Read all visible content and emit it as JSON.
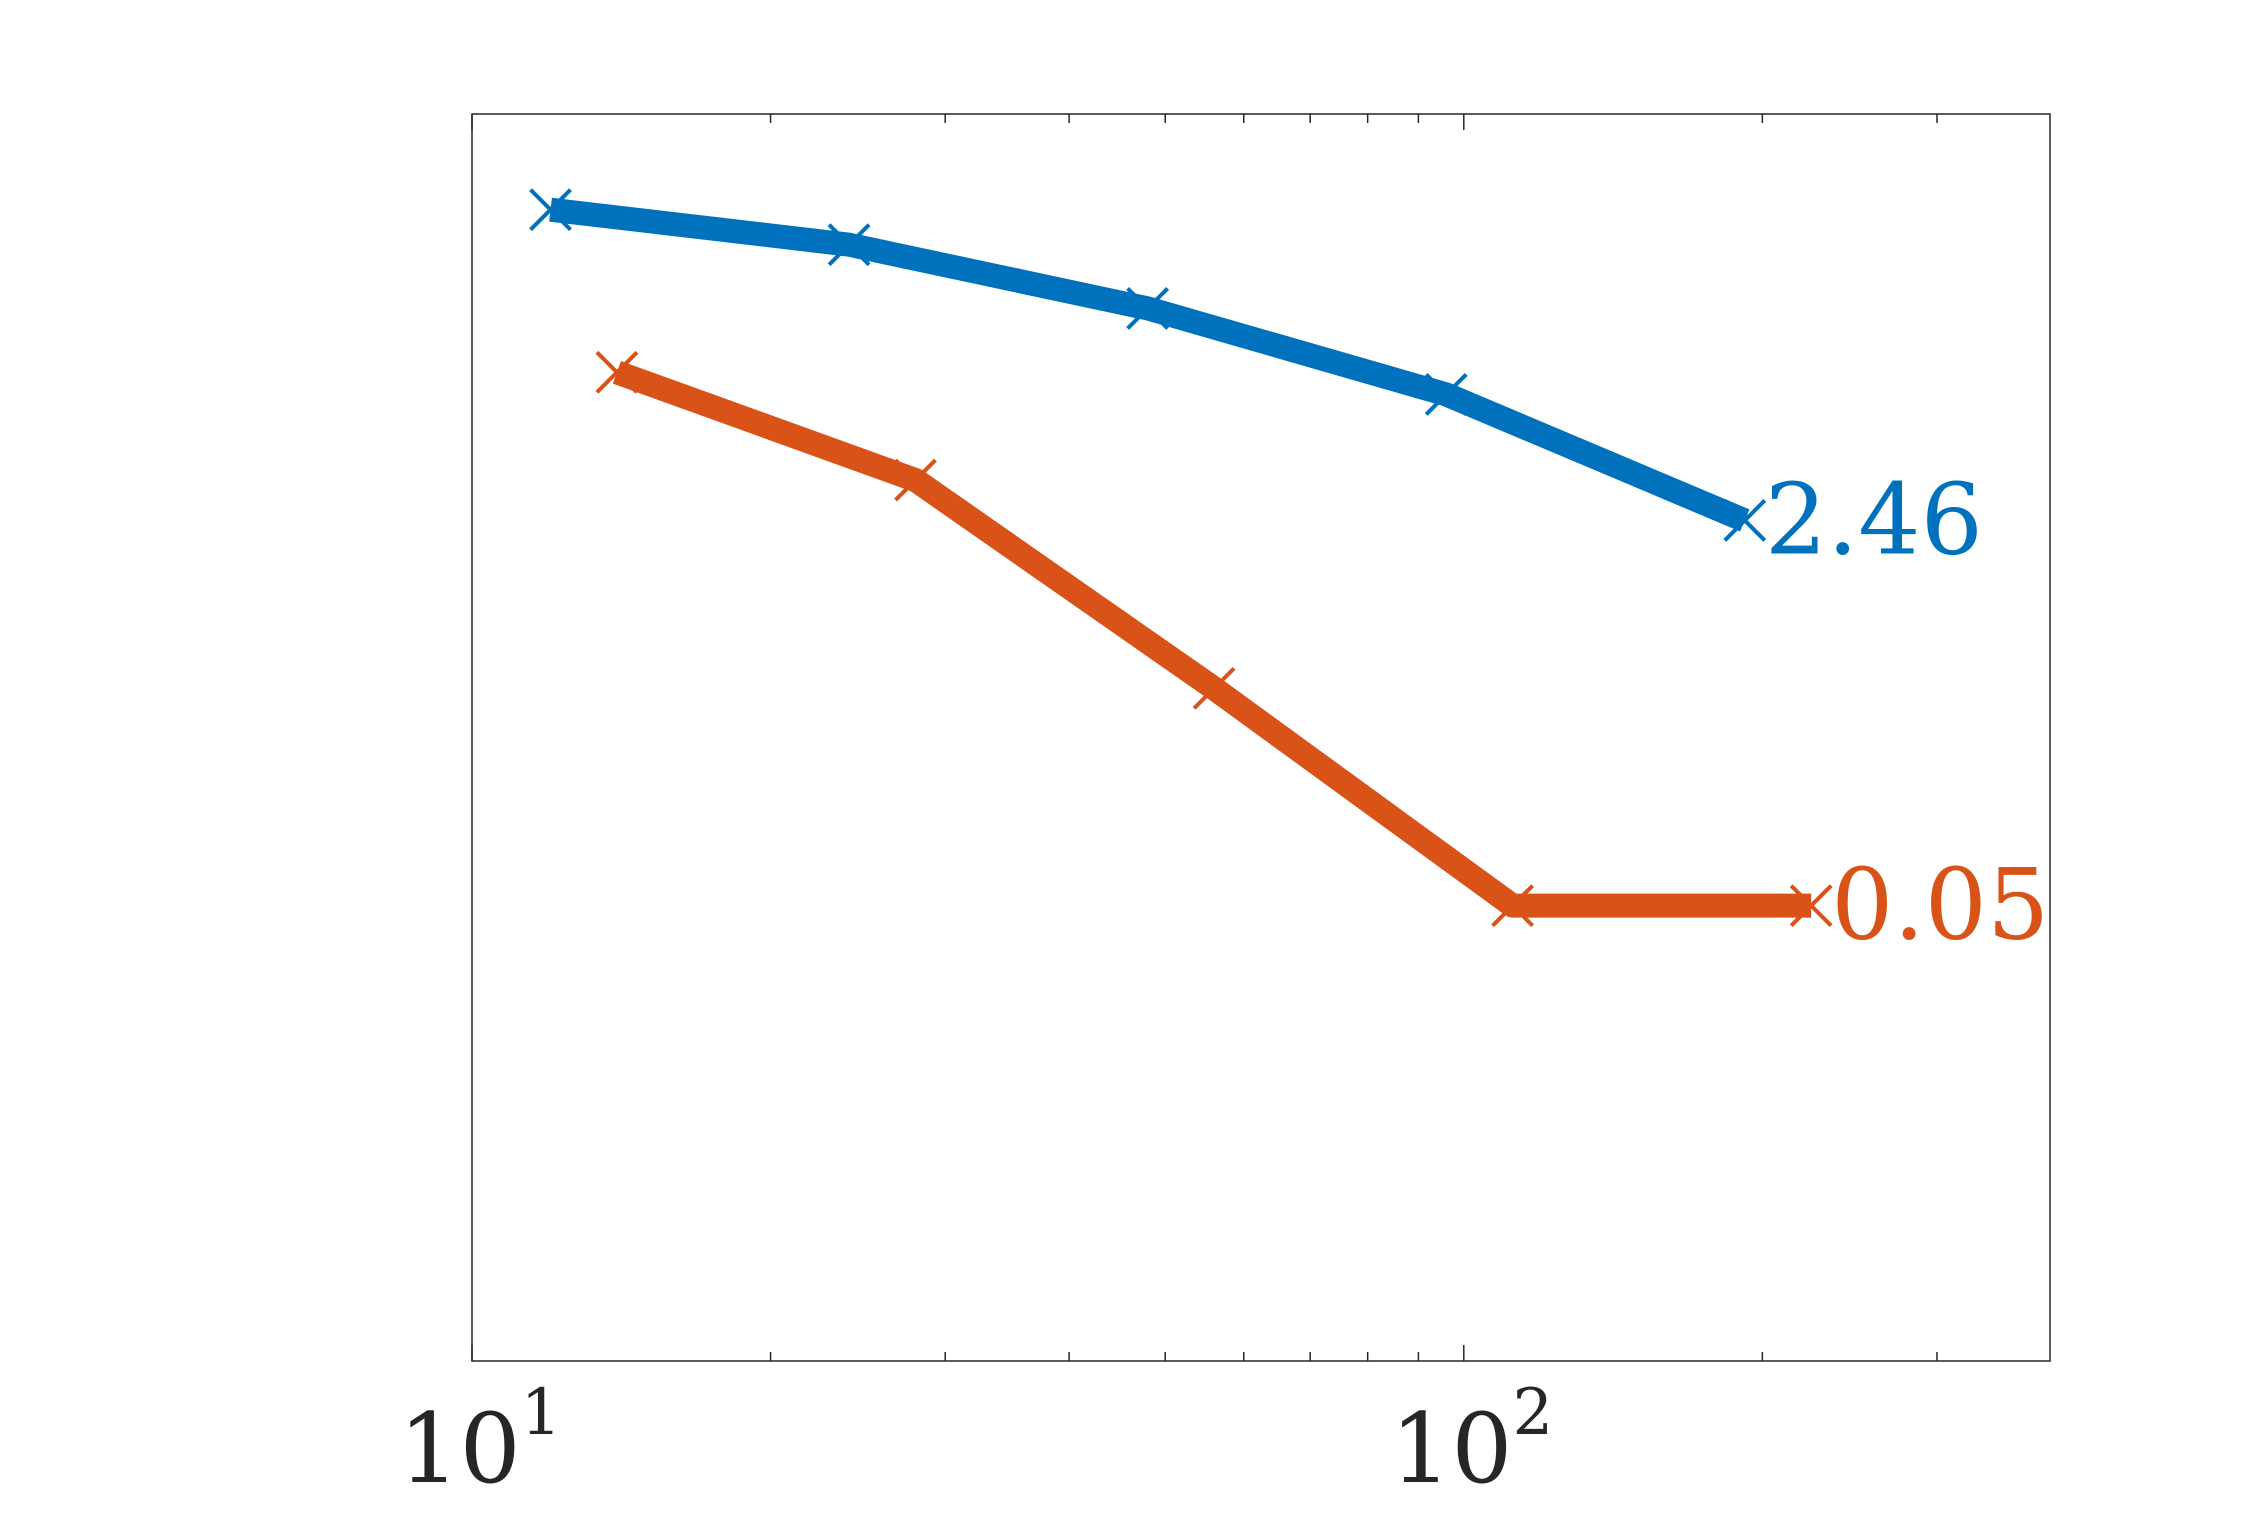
{
  "chart_data": {
    "type": "line",
    "x_scale": "log",
    "y_scale": "log",
    "xlim": [
      10,
      390
    ],
    "ylim": [
      0.0005,
      150
    ],
    "x_ticks": [
      {
        "value": 10,
        "base": "10",
        "exponent": "1"
      },
      {
        "value": 100,
        "base": "10",
        "exponent": "2"
      }
    ],
    "grid": false,
    "series": [
      {
        "color": "#0072BD",
        "marker": "x",
        "x": [
          12,
          24,
          48,
          96,
          192
        ],
        "y": [
          57,
          40,
          21,
          8.8,
          2.46
        ],
        "end_label": "2.46"
      },
      {
        "color": "#D95319",
        "marker": "x",
        "x": [
          14,
          28,
          56,
          112,
          224
        ],
        "y": [
          11,
          3.7,
          0.45,
          0.05,
          0.05
        ],
        "end_label": "0.05"
      }
    ]
  }
}
